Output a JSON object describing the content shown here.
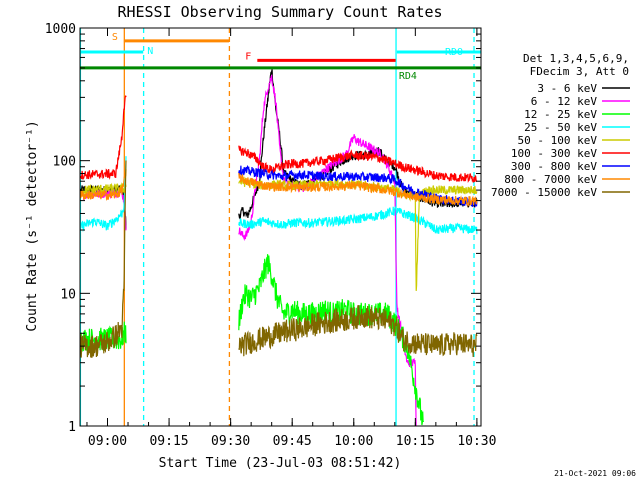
{
  "chart_data": {
    "type": "line",
    "title": "RHESSI Observing Summary Count Rates",
    "xlabel": "Start Time (23-Jul-03 08:51:42)",
    "ylabel": "Count Rate (s⁻¹ detector⁻¹)",
    "yscale": "log",
    "ylim": [
      1,
      1000
    ],
    "xlim_minutes": [
      -6.7,
      91
    ],
    "x_ticks": [
      {
        "label": "09:00",
        "t": 0
      },
      {
        "label": "09:15",
        "t": 15
      },
      {
        "label": "09:30",
        "t": 30
      },
      {
        "label": "09:45",
        "t": 45
      },
      {
        "label": "10:00",
        "t": 60
      },
      {
        "label": "10:15",
        "t": 75
      },
      {
        "label": "10:30",
        "t": 90
      }
    ],
    "y_ticks": [
      {
        "label": "1",
        "v": 1
      },
      {
        "label": "10",
        "v": 10
      },
      {
        "label": "100",
        "v": 100
      },
      {
        "label": "1000",
        "v": 1000
      }
    ],
    "legend_header": [
      "Det 1,3,4,5,6,9,",
      "FDecim 3, Att 0"
    ],
    "series": [
      {
        "name": "3 - 6 keV",
        "color": "#000000",
        "points": [
          [
            -6.5,
            60
          ],
          [
            3.5,
            60
          ],
          [
            4,
            55
          ],
          [
            4.5,
            32
          ],
          [
            32,
            38
          ],
          [
            33,
            42
          ],
          [
            34,
            38
          ],
          [
            35,
            45
          ],
          [
            37,
            70
          ],
          [
            38,
            150
          ],
          [
            39,
            280
          ],
          [
            40,
            500
          ],
          [
            41,
            250
          ],
          [
            42,
            150
          ],
          [
            43,
            80
          ],
          [
            45,
            70
          ],
          [
            47,
            65
          ],
          [
            50,
            70
          ],
          [
            53,
            80
          ],
          [
            55,
            90
          ],
          [
            57,
            100
          ],
          [
            60,
            110
          ],
          [
            63,
            110
          ],
          [
            66,
            120
          ],
          [
            67,
            110
          ],
          [
            68,
            100
          ],
          [
            69,
            95
          ],
          [
            70,
            90
          ],
          [
            72,
            60
          ],
          [
            75,
            55
          ],
          [
            78,
            50
          ],
          [
            80,
            48
          ],
          [
            82,
            47
          ],
          [
            85,
            48
          ],
          [
            90,
            48
          ]
        ]
      },
      {
        "name": "6 - 12 keV",
        "color": "#ff00ff",
        "points": [
          [
            -6.5,
            55
          ],
          [
            3.5,
            58
          ],
          [
            4,
            50
          ],
          [
            4.5,
            32
          ],
          [
            32,
            30
          ],
          [
            33,
            27
          ],
          [
            34,
            28
          ],
          [
            35,
            35
          ],
          [
            36,
            60
          ],
          [
            37,
            100
          ],
          [
            38,
            250
          ],
          [
            39,
            350
          ],
          [
            40,
            430
          ],
          [
            41,
            280
          ],
          [
            42,
            120
          ],
          [
            43,
            70
          ],
          [
            45,
            65
          ],
          [
            48,
            62
          ],
          [
            50,
            70
          ],
          [
            52,
            80
          ],
          [
            55,
            95
          ],
          [
            58,
            110
          ],
          [
            60,
            150
          ],
          [
            61,
            140
          ],
          [
            63,
            130
          ],
          [
            65,
            120
          ],
          [
            67,
            110
          ],
          [
            70,
            70
          ],
          [
            70.5,
            8
          ],
          [
            73,
            3
          ],
          [
            75,
            3
          ],
          [
            75.2,
            1
          ]
        ]
      },
      {
        "name": "12 - 25 keV",
        "color": "#00ff00",
        "points": [
          [
            -6.5,
            4.5
          ],
          [
            3.5,
            4.5
          ],
          [
            4,
            5
          ],
          [
            4.5,
            5
          ],
          [
            32,
            6
          ],
          [
            33,
            9
          ],
          [
            34,
            10
          ],
          [
            35,
            9
          ],
          [
            36,
            10
          ],
          [
            37,
            11
          ],
          [
            38,
            14
          ],
          [
            39,
            17
          ],
          [
            40,
            14
          ],
          [
            41,
            10
          ],
          [
            42,
            8
          ],
          [
            43,
            7
          ],
          [
            45,
            7.5
          ],
          [
            47,
            7
          ],
          [
            50,
            7
          ],
          [
            53,
            7.5
          ],
          [
            55,
            7
          ],
          [
            58,
            7.5
          ],
          [
            60,
            7
          ],
          [
            63,
            7
          ],
          [
            65,
            7
          ],
          [
            68,
            7
          ],
          [
            70,
            6
          ],
          [
            73,
            4
          ],
          [
            75,
            2
          ],
          [
            77,
            1
          ]
        ]
      },
      {
        "name": "25 - 50 keV",
        "color": "#00ffff",
        "points": [
          [
            -6.5,
            32
          ],
          [
            -3,
            35
          ],
          [
            0,
            32
          ],
          [
            2,
            36
          ],
          [
            3.5,
            40
          ],
          [
            4,
            45
          ],
          [
            4.5,
            100
          ],
          [
            32,
            34
          ],
          [
            35,
            33
          ],
          [
            38,
            35
          ],
          [
            40,
            34
          ],
          [
            43,
            33
          ],
          [
            45,
            34
          ],
          [
            50,
            34
          ],
          [
            55,
            35
          ],
          [
            60,
            36
          ],
          [
            65,
            38
          ],
          [
            68,
            40
          ],
          [
            70,
            42
          ],
          [
            72,
            40
          ],
          [
            75,
            37
          ],
          [
            78,
            33
          ],
          [
            80,
            30
          ],
          [
            85,
            31
          ],
          [
            90,
            30
          ]
        ]
      },
      {
        "name": "50 - 100 keV",
        "color": "#cccc00",
        "points": [
          [
            -6.5,
            60
          ],
          [
            3.5,
            62
          ],
          [
            4,
            60
          ],
          [
            4.5,
            65
          ],
          [
            32,
            70
          ],
          [
            35,
            67
          ],
          [
            38,
            65
          ],
          [
            40,
            66
          ],
          [
            45,
            65
          ],
          [
            50,
            66
          ],
          [
            55,
            68
          ],
          [
            60,
            66
          ],
          [
            65,
            64
          ],
          [
            68,
            62
          ],
          [
            70,
            60
          ],
          [
            73,
            55
          ],
          [
            75,
            55
          ],
          [
            75.2,
            10
          ],
          [
            76,
            55
          ],
          [
            78,
            60
          ],
          [
            80,
            60
          ],
          [
            85,
            60
          ],
          [
            90,
            60
          ]
        ]
      },
      {
        "name": "100 - 300 keV",
        "color": "#ff0000",
        "points": [
          [
            -6.5,
            78
          ],
          [
            2,
            80
          ],
          [
            3.5,
            150
          ],
          [
            4,
            250
          ],
          [
            4.5,
            300
          ],
          [
            32,
            120
          ],
          [
            34,
            115
          ],
          [
            36,
            105
          ],
          [
            38,
            90
          ],
          [
            40,
            85
          ],
          [
            42,
            90
          ],
          [
            45,
            95
          ],
          [
            48,
            95
          ],
          [
            50,
            98
          ],
          [
            53,
            100
          ],
          [
            56,
            105
          ],
          [
            60,
            110
          ],
          [
            63,
            108
          ],
          [
            66,
            105
          ],
          [
            68,
            100
          ],
          [
            70,
            95
          ],
          [
            72,
            90
          ],
          [
            75,
            85
          ],
          [
            78,
            80
          ],
          [
            80,
            77
          ],
          [
            85,
            75
          ],
          [
            90,
            74
          ]
        ]
      },
      {
        "name": "300 - 800 keV",
        "color": "#0000ff",
        "points": [
          [
            32,
            85
          ],
          [
            35,
            83
          ],
          [
            38,
            80
          ],
          [
            40,
            78
          ],
          [
            43,
            76
          ],
          [
            45,
            78
          ],
          [
            48,
            78
          ],
          [
            50,
            77
          ],
          [
            53,
            76
          ],
          [
            56,
            76
          ],
          [
            60,
            76
          ],
          [
            63,
            75
          ],
          [
            65,
            75
          ],
          [
            68,
            74
          ],
          [
            70,
            72
          ],
          [
            72,
            65
          ],
          [
            75,
            58
          ],
          [
            78,
            55
          ],
          [
            80,
            52
          ],
          [
            85,
            50
          ],
          [
            90,
            48
          ]
        ]
      },
      {
        "name": "800 - 7000 keV",
        "color": "#ff8800",
        "points": [
          [
            -6.5,
            55
          ],
          [
            2,
            55
          ],
          [
            3.5,
            60
          ],
          [
            4,
            70
          ],
          [
            4.5,
            80
          ],
          [
            32,
            75
          ],
          [
            34,
            70
          ],
          [
            36,
            68
          ],
          [
            38,
            65
          ],
          [
            40,
            64
          ],
          [
            45,
            63
          ],
          [
            50,
            63
          ],
          [
            55,
            64
          ],
          [
            60,
            65
          ],
          [
            65,
            62
          ],
          [
            68,
            60
          ],
          [
            70,
            58
          ],
          [
            73,
            55
          ],
          [
            75,
            53
          ],
          [
            78,
            52
          ],
          [
            80,
            51
          ],
          [
            85,
            50
          ],
          [
            90,
            50
          ]
        ]
      },
      {
        "name": "7000 - 15000 keV",
        "color": "#806600",
        "points": [
          [
            -6.5,
            4
          ],
          [
            -3,
            4
          ],
          [
            0,
            4.3
          ],
          [
            2,
            4.8
          ],
          [
            3.5,
            5.5
          ],
          [
            4,
            10
          ],
          [
            4.5,
            100
          ],
          [
            32,
            4
          ],
          [
            35,
            4.3
          ],
          [
            38,
            4.6
          ],
          [
            40,
            4.8
          ],
          [
            42,
            5
          ],
          [
            45,
            5.3
          ],
          [
            48,
            5.5
          ],
          [
            50,
            5.8
          ],
          [
            53,
            6
          ],
          [
            55,
            6.2
          ],
          [
            58,
            6.3
          ],
          [
            60,
            6.5
          ],
          [
            62,
            6.8
          ],
          [
            65,
            6.5
          ],
          [
            68,
            6.2
          ],
          [
            70,
            5.8
          ],
          [
            72,
            4.5
          ],
          [
            75,
            4.2
          ],
          [
            80,
            4
          ],
          [
            85,
            4.2
          ],
          [
            90,
            4
          ]
        ]
      }
    ],
    "annotations": [
      {
        "label": "S",
        "color": "#ff8800",
        "t_start": 4.0,
        "t_end": 29.6,
        "y": 800,
        "kind": "bar"
      },
      {
        "label": "N",
        "color": "#00ffff",
        "t_start": -6.7,
        "t_end": 8.7,
        "y": 660,
        "kind": "bar"
      },
      {
        "label": "F",
        "color": "#ff0000",
        "t_start": 36.5,
        "t_end": 70.2,
        "y": 570,
        "kind": "bar"
      },
      {
        "label": "RDO",
        "color": "#00ffff",
        "t_start": 70.5,
        "t_end": 91,
        "y": 660,
        "kind": "bar"
      },
      {
        "label": "RD4",
        "color": "#008800",
        "t_start": -6.7,
        "t_end": 91,
        "y": 500,
        "kind": "bar"
      }
    ],
    "vertical_markers": [
      {
        "t": -6.6,
        "color": "#00ffff",
        "style": "solid"
      },
      {
        "t": 4.1,
        "color": "#ff8800",
        "style": "solid"
      },
      {
        "t": 8.8,
        "color": "#00ffff",
        "style": "dashed"
      },
      {
        "t": 29.7,
        "color": "#ff8800",
        "style": "dashed"
      },
      {
        "t": 70.3,
        "color": "#00ffff",
        "style": "solid"
      },
      {
        "t": 89.3,
        "color": "#00ffff",
        "style": "dashed"
      }
    ],
    "footer_date": "21-Oct-2021 09:06"
  }
}
